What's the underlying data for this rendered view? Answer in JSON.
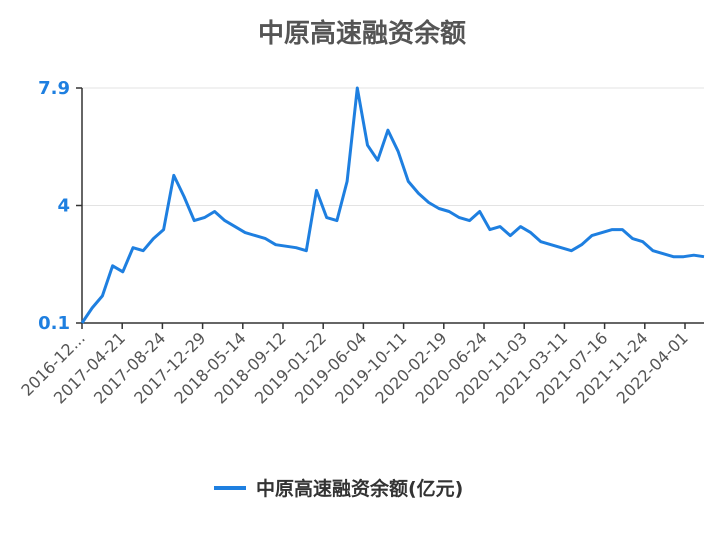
{
  "chart_data": {
    "type": "line",
    "title": "中原高速融资余额",
    "xlabel": "",
    "ylabel": "",
    "ylim": [
      0.1,
      7.9
    ],
    "yticks": [
      "7.9",
      "4",
      "0.1"
    ],
    "ytick_values": [
      7.9,
      4,
      0.1
    ],
    "x_tick_labels": [
      "2016-12...",
      "2017-04-21",
      "2017-08-24",
      "2017-12-29",
      "2018-05-14",
      "2018-09-12",
      "2019-01-22",
      "2019-06-04",
      "2019-10-11",
      "2020-02-19",
      "2020-06-24",
      "2020-11-03",
      "2021-03-11",
      "2021-07-16",
      "2021-11-24",
      "2022-04-01"
    ],
    "grid": true,
    "legend_position": "bottom",
    "series": [
      {
        "name": "中原高速融资余额(亿元)",
        "color": "#1e7fe0",
        "values": [
          0.1,
          0.6,
          1.0,
          2.0,
          1.8,
          2.6,
          2.5,
          2.9,
          3.2,
          5.0,
          4.3,
          3.5,
          3.6,
          3.8,
          3.5,
          3.3,
          3.1,
          3.0,
          2.9,
          2.7,
          2.65,
          2.6,
          2.5,
          4.5,
          3.6,
          3.5,
          4.8,
          7.9,
          6.0,
          5.5,
          6.5,
          5.8,
          4.8,
          4.4,
          4.1,
          3.9,
          3.8,
          3.6,
          3.5,
          3.8,
          3.2,
          3.3,
          3.0,
          3.3,
          3.1,
          2.8,
          2.7,
          2.6,
          2.5,
          2.7,
          3.0,
          3.1,
          3.2,
          3.2,
          2.9,
          2.8,
          2.5,
          2.4,
          2.3,
          2.3,
          2.35,
          2.3
        ]
      }
    ]
  }
}
